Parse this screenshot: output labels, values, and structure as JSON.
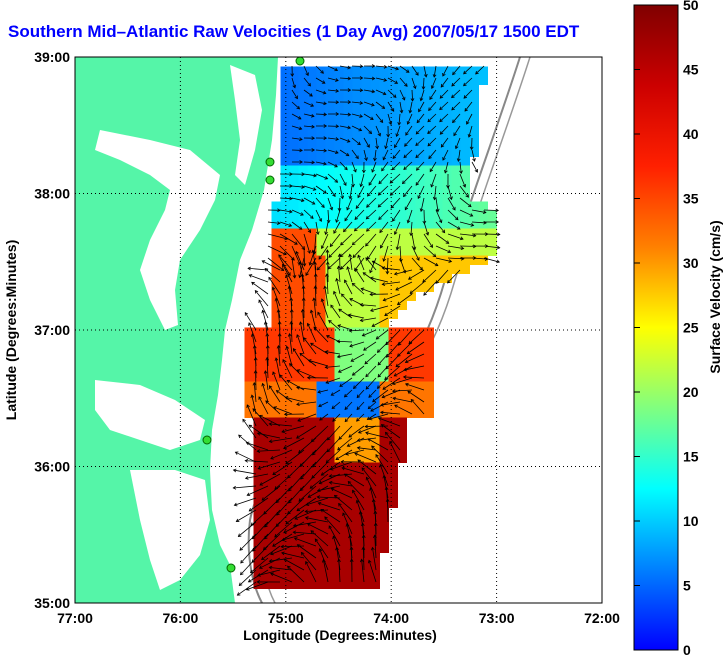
{
  "title": "Southern Mid–Atlantic Raw Velocities (1 Day Avg) 2007/05/17 1500 EDT",
  "x_axis": {
    "label": "Longitude (Degrees:Minutes)",
    "ticks": [
      "77:00",
      "76:00",
      "75:00",
      "74:00",
      "73:00",
      "72:00"
    ]
  },
  "y_axis": {
    "label": "Latitude (Degrees:Minutes)",
    "ticks": [
      "39:00",
      "38:00",
      "37:00",
      "36:00",
      "35:00"
    ]
  },
  "colorbar": {
    "label": "Surface Velocity (cm/s)",
    "ticks": [
      "50",
      "45",
      "40",
      "35",
      "30",
      "25",
      "20",
      "15",
      "10",
      "5",
      "0"
    ],
    "min": 0,
    "max": 50,
    "colormap": "jet"
  },
  "colors": {
    "land": "#55f5a8",
    "ocean": "#ffffff",
    "title": "#0000ff",
    "stations": "#33dd33",
    "grid": "#000000",
    "bathymetry": "#888888"
  },
  "stations_count": 5,
  "grid": "dotted",
  "icons": {
    "vector": "arrow-icon",
    "station": "station-dot-icon"
  }
}
